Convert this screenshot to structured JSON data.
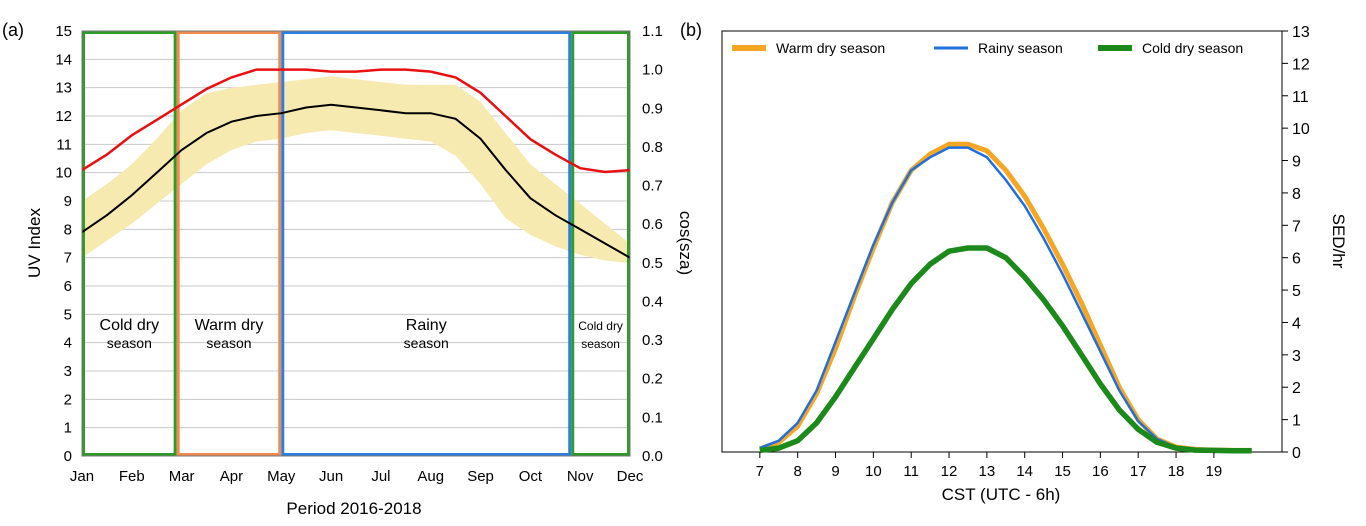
{
  "figure": {
    "panel_a_label": "(a)",
    "panel_b_label": "(b)"
  },
  "chart_data": [
    {
      "type": "line",
      "panel": "(a)",
      "xlabel": "Period 2016-2018",
      "ylabel": "UV Index",
      "y2label": "cos(sza)",
      "xlim": [
        1,
        12
      ],
      "ylim": [
        0,
        15
      ],
      "y2lim": [
        0.0,
        1.1
      ],
      "grid": true,
      "x_ticks": [
        "Jan",
        "Feb",
        "Mar",
        "Apr",
        "May",
        "Jun",
        "Jul",
        "Aug",
        "Sep",
        "Oct",
        "Nov",
        "Dec"
      ],
      "y_ticks": [
        0,
        1,
        2,
        3,
        4,
        5,
        6,
        7,
        8,
        9,
        10,
        11,
        12,
        13,
        14,
        15
      ],
      "y2_ticks": [
        "0.0",
        "0.1",
        "0.2",
        "0.3",
        "0.4",
        "0.5",
        "0.6",
        "0.7",
        "0.8",
        "0.9",
        "1.0",
        "1.1"
      ],
      "colors": {
        "mean_line": "#000000",
        "cos_line": "#e81010",
        "band": "#f7eab0"
      },
      "series": [
        {
          "role": "mean_uv",
          "axis": "left",
          "x": [
            1,
            1.5,
            2,
            2.5,
            3,
            3.5,
            4,
            4.5,
            5,
            5.5,
            6,
            6.5,
            7,
            7.5,
            8,
            8.5,
            9,
            9.5,
            10,
            10.5,
            11,
            11.5,
            12
          ],
          "y": [
            7.9,
            8.5,
            9.2,
            10.0,
            10.8,
            11.4,
            11.8,
            12.0,
            12.1,
            12.3,
            12.4,
            12.3,
            12.2,
            12.1,
            12.1,
            11.9,
            11.2,
            10.1,
            9.1,
            8.5,
            8.0,
            7.5,
            7.0
          ]
        },
        {
          "role": "cos_sza",
          "axis": "right",
          "x": [
            1,
            1.5,
            2,
            2.5,
            3,
            3.5,
            4,
            4.5,
            5,
            5.5,
            6,
            6.5,
            7,
            7.5,
            8,
            8.5,
            9,
            9.5,
            10,
            10.5,
            11,
            11.5,
            12
          ],
          "y": [
            0.74,
            0.78,
            0.83,
            0.87,
            0.91,
            0.95,
            0.98,
            1.0,
            1.0,
            1.0,
            0.995,
            0.995,
            1.0,
            1.0,
            0.995,
            0.98,
            0.94,
            0.88,
            0.82,
            0.78,
            0.745,
            0.735,
            0.74
          ]
        }
      ],
      "band": {
        "x": [
          1,
          1.5,
          2,
          2.5,
          3,
          3.5,
          4,
          4.5,
          5,
          5.5,
          6,
          6.5,
          7,
          7.5,
          8,
          8.5,
          9,
          9.5,
          10,
          10.5,
          11,
          11.5,
          12
        ],
        "lower": [
          7.0,
          7.6,
          8.2,
          8.9,
          9.6,
          10.3,
          10.8,
          11.1,
          11.2,
          11.4,
          11.5,
          11.4,
          11.3,
          11.2,
          11.1,
          10.6,
          9.6,
          8.4,
          7.8,
          7.4,
          7.1,
          6.9,
          6.8
        ],
        "upper": [
          9.0,
          9.6,
          10.3,
          11.2,
          12.2,
          12.8,
          13.0,
          13.1,
          13.2,
          13.3,
          13.4,
          13.3,
          13.2,
          13.1,
          13.1,
          13.1,
          12.5,
          11.4,
          10.3,
          9.6,
          8.9,
          8.2,
          7.5
        ]
      },
      "seasons": [
        {
          "label_line1": "Cold dry",
          "label_line2": "season",
          "x_start": 1,
          "x_end": 2.9,
          "color": "#2e9a28"
        },
        {
          "label_line1": "Warm dry",
          "label_line2": "season",
          "x_start": 2.9,
          "x_end": 5.0,
          "color": "#ee8a52"
        },
        {
          "label_line1": "Rainy",
          "label_line2": "season",
          "x_start": 5.0,
          "x_end": 10.82,
          "color": "#2c7fe0"
        },
        {
          "label_line1": "Cold dry",
          "label_line2": "season",
          "x_start": 10.82,
          "x_end": 12,
          "color": "#2e9a28"
        }
      ]
    },
    {
      "type": "line",
      "panel": "(b)",
      "xlabel": "CST (UTC - 6h)",
      "ylabel": "SED/hr",
      "xlim": [
        6.0,
        20.8
      ],
      "ylim": [
        0,
        13
      ],
      "x_ticks": [
        7,
        8,
        9,
        10,
        11,
        12,
        13,
        14,
        15,
        16,
        17,
        18,
        19
      ],
      "y_ticks": [
        0,
        1,
        2,
        3,
        4,
        5,
        6,
        7,
        8,
        9,
        10,
        11,
        12,
        13
      ],
      "legend_position": "top",
      "series": [
        {
          "name": "Warm dry season",
          "color": "#f5a623",
          "x": [
            7.0,
            7.5,
            8.0,
            8.5,
            9.0,
            9.5,
            10.0,
            10.5,
            11.0,
            11.5,
            12.0,
            12.5,
            13.0,
            13.5,
            14.0,
            14.5,
            15.0,
            15.5,
            16.0,
            16.5,
            17.0,
            17.5,
            18.0,
            18.5,
            19.0,
            19.5,
            20.0
          ],
          "y": [
            0.1,
            0.3,
            0.8,
            1.8,
            3.2,
            4.8,
            6.3,
            7.7,
            8.7,
            9.2,
            9.5,
            9.5,
            9.3,
            8.7,
            7.9,
            6.9,
            5.8,
            4.6,
            3.3,
            2.0,
            1.0,
            0.4,
            0.15,
            0.08,
            0.06,
            0.05,
            0.05
          ]
        },
        {
          "name": "Rainy season",
          "color": "#1f6fe0",
          "x": [
            7.0,
            7.5,
            8.0,
            8.5,
            9.0,
            9.5,
            10.0,
            10.5,
            11.0,
            11.5,
            12.0,
            12.5,
            13.0,
            13.5,
            14.0,
            14.5,
            15.0,
            15.5,
            16.0,
            16.5,
            17.0,
            17.5,
            18.0,
            18.5,
            19.0,
            19.5,
            20.0
          ],
          "y": [
            0.12,
            0.35,
            0.9,
            1.9,
            3.4,
            4.9,
            6.4,
            7.7,
            8.7,
            9.1,
            9.4,
            9.4,
            9.1,
            8.4,
            7.6,
            6.6,
            5.5,
            4.3,
            3.1,
            1.9,
            0.95,
            0.4,
            0.15,
            0.08,
            0.06,
            0.05,
            0.05
          ]
        },
        {
          "name": "Cold dry season",
          "color": "#1b8a1b",
          "x": [
            7.0,
            7.5,
            8.0,
            8.5,
            9.0,
            9.5,
            10.0,
            10.5,
            11.0,
            11.5,
            12.0,
            12.5,
            13.0,
            13.5,
            14.0,
            14.5,
            15.0,
            15.5,
            16.0,
            16.5,
            17.0,
            17.5,
            18.0,
            18.5,
            19.0,
            19.5,
            20.0
          ],
          "y": [
            0.05,
            0.12,
            0.35,
            0.9,
            1.7,
            2.6,
            3.5,
            4.4,
            5.2,
            5.8,
            6.2,
            6.3,
            6.3,
            6.0,
            5.4,
            4.7,
            3.9,
            3.0,
            2.1,
            1.3,
            0.7,
            0.3,
            0.12,
            0.06,
            0.05,
            0.04,
            0.04
          ]
        }
      ]
    }
  ]
}
